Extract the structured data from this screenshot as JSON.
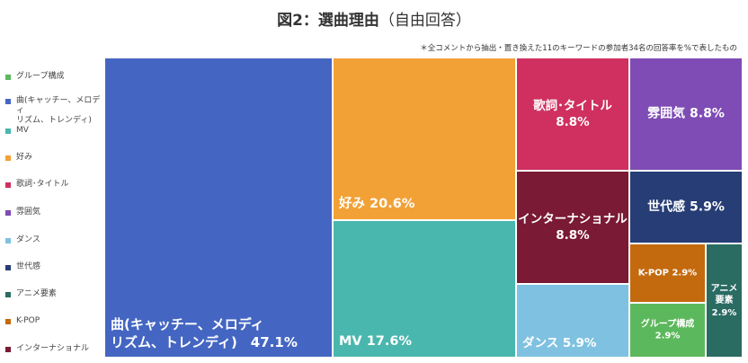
{
  "title_main": "図2：選曲理由",
  "title_sub": "（自由回答）",
  "note": "＊全コメントから抽出・置き換えた11のキーワードの参加者34名の回答率を%で表したもの",
  "chart_data": {
    "type": "treemap",
    "unit": "%",
    "legend": [
      {
        "name": "グループ構成",
        "color": "#5cb85c"
      },
      {
        "name": "曲(キャッチー、メロディ\nリズム、トレンディ)",
        "color": "#4466c2"
      },
      {
        "name": "MV",
        "color": "#4ab7ae"
      },
      {
        "name": "好み",
        "color": "#f2a136"
      },
      {
        "name": "歌詞･タイトル",
        "color": "#cf3060"
      },
      {
        "name": "雰囲気",
        "color": "#7e4cb4"
      },
      {
        "name": "ダンス",
        "color": "#7fc1e0"
      },
      {
        "name": "世代感",
        "color": "#263d75"
      },
      {
        "name": "アニメ要素",
        "color": "#2a6b62"
      },
      {
        "name": "K-POP",
        "color": "#c36a0f"
      },
      {
        "name": "インターナショナル",
        "color": "#7a1a35"
      }
    ],
    "tiles": [
      {
        "name": "曲(キャッチー、メロディ\nリズム、トレンディ)",
        "value": 47.1,
        "label": "曲(キャッチー、メロディ\nリズム、トレンディ)　47.1%",
        "color": "#4466c2"
      },
      {
        "name": "好み",
        "value": 20.6,
        "label": "好み 20.6%",
        "color": "#f2a136"
      },
      {
        "name": "MV",
        "value": 17.6,
        "label": "MV 17.6%",
        "color": "#4ab7ae"
      },
      {
        "name": "歌詞･タイトル",
        "value": 8.8,
        "label": "歌詞･タイトル\n8.8%",
        "color": "#cf3060"
      },
      {
        "name": "インターナショナル",
        "value": 8.8,
        "label": "インターナショナル\n8.8%",
        "color": "#7a1a35"
      },
      {
        "name": "ダンス",
        "value": 5.9,
        "label": "ダンス 5.9%",
        "color": "#7fc1e0"
      },
      {
        "name": "雰囲気",
        "value": 8.8,
        "label": "雰囲気 8.8%",
        "color": "#7e4cb4"
      },
      {
        "name": "世代感",
        "value": 5.9,
        "label": "世代感 5.9%",
        "color": "#263d75"
      },
      {
        "name": "K-POP",
        "value": 2.9,
        "label": "K-POP 2.9%",
        "color": "#c36a0f"
      },
      {
        "name": "グループ構成",
        "value": 2.9,
        "label": "グループ構成\n2.9%",
        "color": "#5cb85c"
      },
      {
        "name": "アニメ要素",
        "value": 2.9,
        "label": "アニメ\n要素\n2.9%",
        "color": "#2a6b62"
      }
    ]
  }
}
